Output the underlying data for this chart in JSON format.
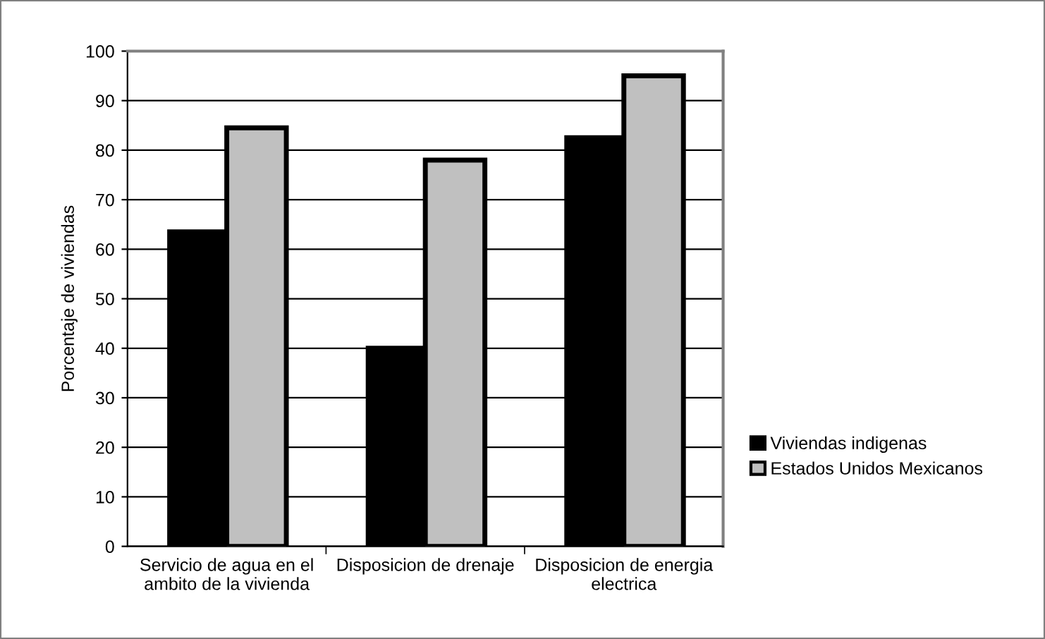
{
  "chart_data": {
    "type": "bar",
    "ylabel": "Porcentaje de viviendas",
    "categories": [
      "Servicio de agua en el\nambito de la vivienda",
      "Disposicion de drenaje",
      "Disposicion de energia\nelectrica"
    ],
    "series": [
      {
        "name": "Viviendas indigenas",
        "color": "#000000",
        "values": [
          64,
          40.5,
          83
        ]
      },
      {
        "name": "Estados Unidos Mexicanos",
        "color": "#c0c0c0",
        "values": [
          84.5,
          78,
          95
        ]
      }
    ],
    "ylim": [
      0,
      100
    ],
    "yticks": [
      0,
      10,
      20,
      30,
      40,
      50,
      60,
      70,
      80,
      90,
      100
    ],
    "grid": "y",
    "legend": "right"
  }
}
